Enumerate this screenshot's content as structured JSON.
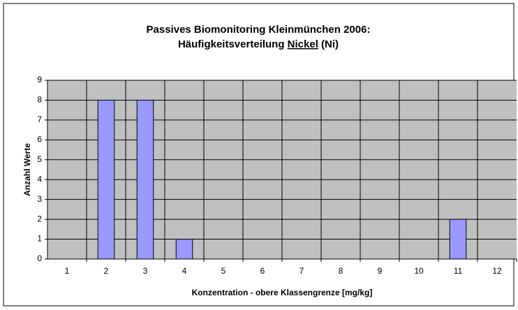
{
  "chart_data": {
    "type": "bar",
    "title": [
      "Passives Biomonitoring Kleinmünchen 2006:",
      [
        "Häufigkeitsverteilung",
        "Nickel",
        "(Ni)"
      ]
    ],
    "x_label": "Konzentration - obere Klassengrenze [mg/kg]",
    "y_label": "Anzahl Werte",
    "categories": [
      "1",
      "2",
      "3",
      "4",
      "5",
      "6",
      "7",
      "8",
      "9",
      "10",
      "11",
      "12"
    ],
    "values": [
      0,
      8,
      8,
      1,
      0,
      0,
      0,
      0,
      0,
      0,
      2,
      0
    ],
    "color": "#9999ff",
    "ylim": [
      0,
      9
    ],
    "yticks": [
      0,
      1,
      2,
      3,
      4,
      5,
      6,
      7,
      8,
      9
    ],
    "grid": true
  }
}
